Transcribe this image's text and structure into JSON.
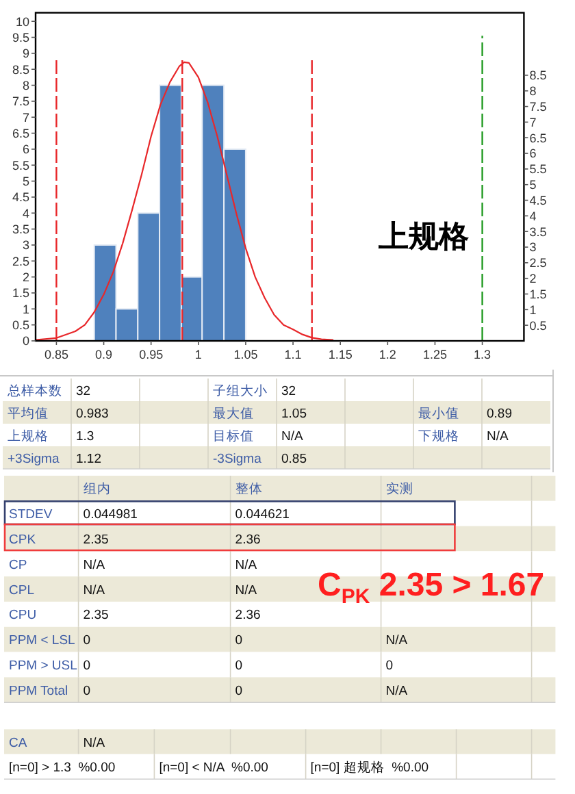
{
  "chart_data": {
    "type": "histogram",
    "series": [
      {
        "color": "#4f81bd",
        "bins": [
          0.89,
          0.913,
          0.936,
          0.959,
          0.982,
          1.004,
          1.027,
          1.05
        ],
        "values": [
          3,
          1,
          4,
          8,
          2,
          8,
          6
        ]
      },
      {
        "type": "line",
        "color": "#e8272a",
        "x": [
          0.828,
          0.85,
          0.87,
          0.88,
          0.89,
          0.9,
          0.91,
          0.92,
          0.93,
          0.94,
          0.95,
          0.96,
          0.97,
          0.98,
          0.985,
          0.99,
          1,
          1.01,
          1.02,
          1.03,
          1.04,
          1.05,
          1.06,
          1.07,
          1.08,
          1.09,
          1.1,
          1.11,
          1.12,
          1.13,
          1.142
        ],
        "values": [
          0.03,
          0.09,
          0.3,
          0.5,
          0.9,
          1.45,
          2.15,
          3.05,
          4.1,
          5.2,
          6.4,
          7.4,
          8.1,
          8.6,
          8.72,
          8.7,
          8.25,
          7.45,
          6.4,
          5.2,
          4.0,
          2.9,
          2.0,
          1.35,
          0.82,
          0.5,
          0.36,
          0.2,
          0.1,
          0.05,
          0.03
        ]
      }
    ],
    "xlim": [
      0.828,
      1.344
    ],
    "xticks": [
      0.85,
      0.9,
      0.95,
      1,
      1.05,
      1.1,
      1.15,
      1.2,
      1.25,
      1.3
    ],
    "ylim": [
      0,
      10.27
    ],
    "yticks": [
      0,
      0.5,
      1,
      1.5,
      2,
      2.5,
      3,
      3.5,
      4,
      4.5,
      5,
      5.5,
      6,
      6.5,
      7,
      7.5,
      8,
      8.5,
      9,
      9.5,
      10
    ],
    "y2lim": [
      0,
      10.5
    ],
    "y2ticks": [
      0.5,
      1,
      1.5,
      2,
      2.5,
      3,
      3.5,
      4,
      4.5,
      5,
      5.5,
      6,
      6.5,
      7,
      7.5,
      8,
      8.5
    ],
    "ref_lines": [
      {
        "axis": "x",
        "value": 0.85,
        "color": "#e8272a",
        "line_style": "dashed"
      },
      {
        "axis": "x",
        "value": 0.983,
        "color": "#e8272a",
        "line_style": "dashed"
      },
      {
        "axis": "x",
        "value": 1.12,
        "color": "#e8272a",
        "line_style": "dashed"
      },
      {
        "axis": "x",
        "value": 1.3,
        "color": "#229a22",
        "line_style": "dashed",
        "label": "上规格"
      }
    ],
    "annotations": [
      "总样本数",
      "32",
      "子组大小",
      "32",
      "平均值",
      "0.983",
      "最大值",
      "1.05",
      "最小值",
      "0.89",
      "上规格",
      "1.3",
      "目标值",
      "N/A",
      "下规格",
      "N/A",
      "+3Sigma",
      "1.12",
      "-3Sigma",
      "0.85",
      "组内",
      "整体",
      "实测",
      "STDEV",
      "0.044981",
      "0.044621",
      "CPK",
      "2.35",
      "2.36",
      "CP",
      "N/A",
      "N/A",
      "CPL",
      "N/A",
      "N/A",
      "CPU",
      "2.35",
      "2.36",
      "PPM < LSL",
      "0",
      "0",
      "N/A",
      "PPM > USL",
      "0",
      "0",
      "0",
      "PPM Total",
      "0",
      "0",
      "N/A",
      "CA",
      "N/A",
      "[n=0] > 1.3  %0.00",
      "[n=0] < N/A  %0.00",
      "[n=0] 超规格  %0.00",
      "C$_{PK}$ 2.35 > 1.67"
    ]
  }
}
